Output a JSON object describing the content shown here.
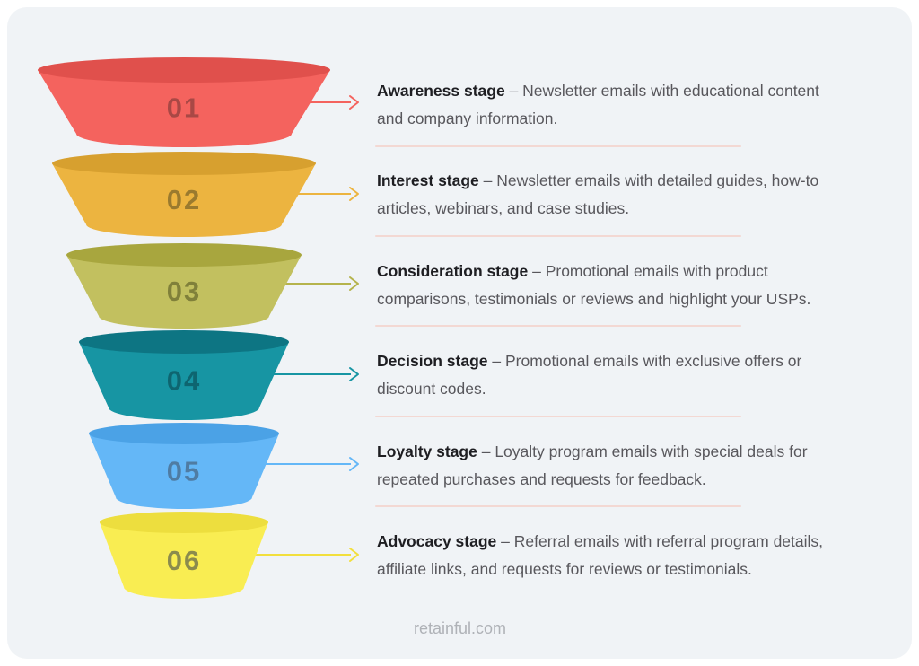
{
  "card": {
    "outer_background": "#FFFFFF",
    "background": "#F0F3F6"
  },
  "text_colors": {
    "heading": "#1E1E22",
    "body": "#58575C",
    "footer": "#AFB2B7"
  },
  "divider_color": "#F3D8D3",
  "footer": {
    "website": "retainful.com"
  },
  "funnel": {
    "stages": [
      {
        "number": "01",
        "title": "Awareness stage",
        "description": "– Newsletter emails with educational content and company information.",
        "body_color": "#F4635E",
        "cap_color": "#E0504C",
        "number_color": "#A94845",
        "arrow_color": "#F4635E"
      },
      {
        "number": "02",
        "title": "Interest stage",
        "description": "– Newsletter emails with detailed guides, how-to articles, webinars, and case studies.",
        "body_color": "#ECB440",
        "cap_color": "#D7A02F",
        "number_color": "#9A7A2E",
        "arrow_color": "#ECB440"
      },
      {
        "number": "03",
        "title": "Consideration stage",
        "description": "– Promotional emails with product comparisons, testimonials or reviews and highlight your USPs.",
        "body_color": "#C2C05F",
        "cap_color": "#A8A63E",
        "number_color": "#80803A",
        "arrow_color": "#B5B34C"
      },
      {
        "number": "04",
        "title": "Decision stage",
        "description": "– Promotional emails with exclusive offers or discount codes.",
        "body_color": "#1795A3",
        "cap_color": "#0D7583",
        "number_color": "#0E6570",
        "arrow_color": "#1795A3"
      },
      {
        "number": "05",
        "title": "Loyalty stage",
        "description": "– Loyalty program emails with special deals for repeated purchases and requests for feedback.",
        "body_color": "#64B7F7",
        "cap_color": "#4BA2E6",
        "number_color": "#4F7CA3",
        "arrow_color": "#64B7F7"
      },
      {
        "number": "06",
        "title": "Advocacy stage",
        "description": "– Referral emails with referral program details, affiliate links, and requests for reviews or testimonials.",
        "body_color": "#F9ED52",
        "cap_color": "#EDDE3E",
        "number_color": "#8B8B4D",
        "arrow_color": "#F2DF3D"
      }
    ]
  }
}
